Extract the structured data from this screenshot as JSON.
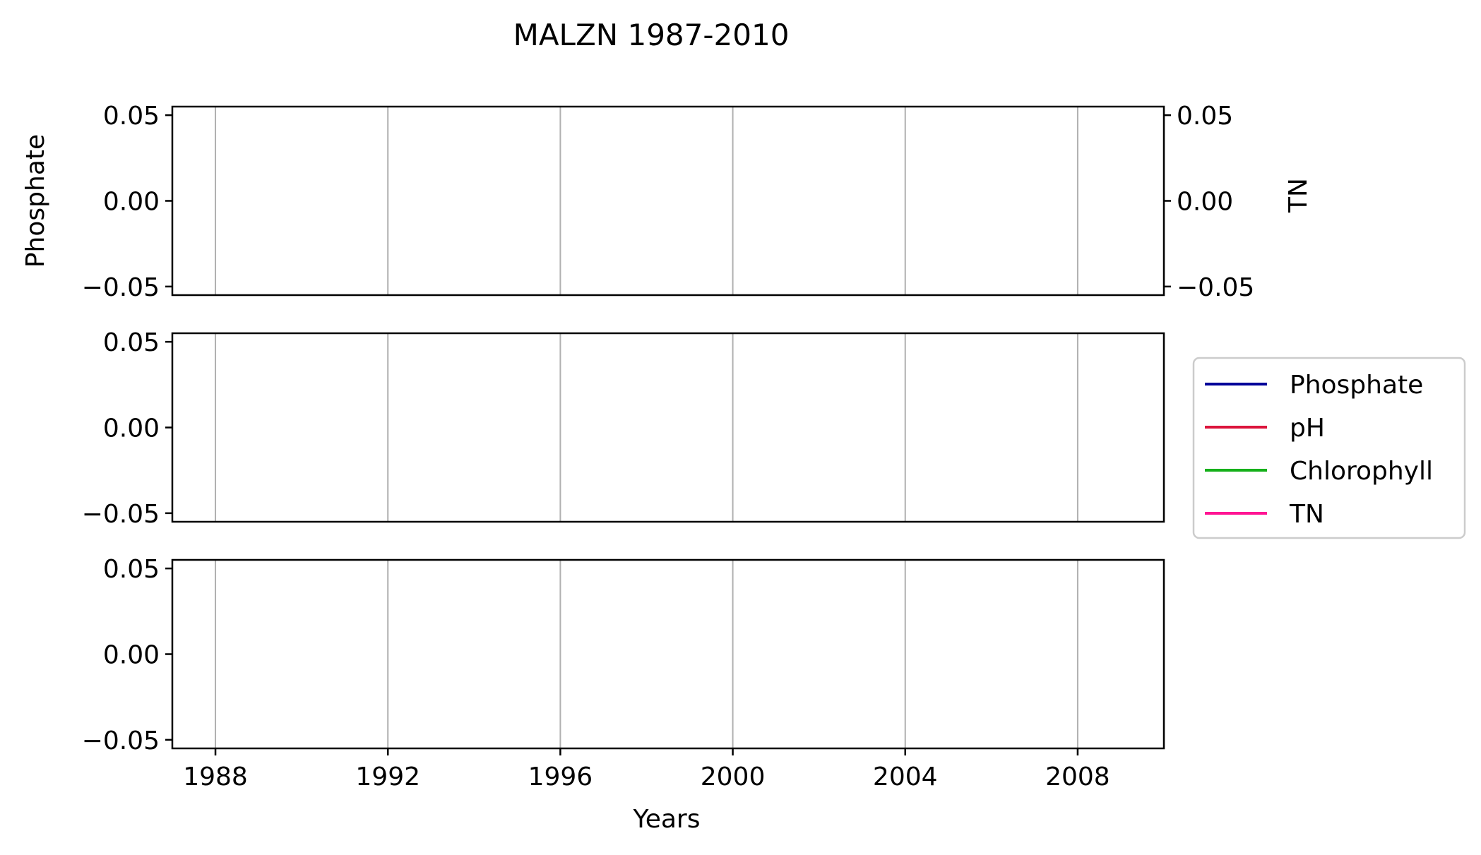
{
  "chart_data": {
    "type": "line",
    "title": "MALZN 1987-2010",
    "xlabel": "Years",
    "xlim": [
      1987.0,
      2010.0
    ],
    "x_ticks": [
      1988,
      1992,
      1996,
      2000,
      2004,
      2008
    ],
    "x_tick_labels": [
      "1988",
      "1992",
      "1996",
      "2000",
      "2004",
      "2008"
    ],
    "grid": "vertical",
    "legend": {
      "placement": "right",
      "entries": [
        {
          "label": "Phosphate",
          "color": "#000099"
        },
        {
          "label": "pH",
          "color": "#dc143c"
        },
        {
          "label": "Chlorophyll",
          "color": "#15b01a"
        },
        {
          "label": "TN",
          "color": "#ff1493"
        }
      ]
    },
    "panels": [
      {
        "ylabel": "Phosphate",
        "ylim": [
          -0.055,
          0.055
        ],
        "y_ticks": [
          0.05,
          0.0,
          -0.05
        ],
        "y_tick_labels": [
          "0.05",
          "0.00",
          "−0.05"
        ],
        "secondary_axis": {
          "ylabel": "TN",
          "ylim": [
            -0.055,
            0.055
          ],
          "y_ticks": [
            0.05,
            0.0,
            -0.05
          ],
          "y_tick_labels": [
            "0.05",
            "0.00",
            "−0.05"
          ]
        },
        "series": [
          {
            "name": "Phosphate",
            "values": []
          },
          {
            "name": "TN",
            "values": []
          }
        ]
      },
      {
        "ylabel": "",
        "ylim": [
          -0.055,
          0.055
        ],
        "y_ticks": [
          0.05,
          0.0,
          -0.05
        ],
        "y_tick_labels": [
          "0.05",
          "0.00",
          "−0.05"
        ],
        "series": [
          {
            "name": "pH",
            "values": []
          }
        ]
      },
      {
        "ylabel": "",
        "ylim": [
          -0.055,
          0.055
        ],
        "y_ticks": [
          0.05,
          0.0,
          -0.05
        ],
        "y_tick_labels": [
          "0.05",
          "0.00",
          "−0.05"
        ],
        "series": [
          {
            "name": "Chlorophyll",
            "values": []
          }
        ]
      }
    ]
  }
}
